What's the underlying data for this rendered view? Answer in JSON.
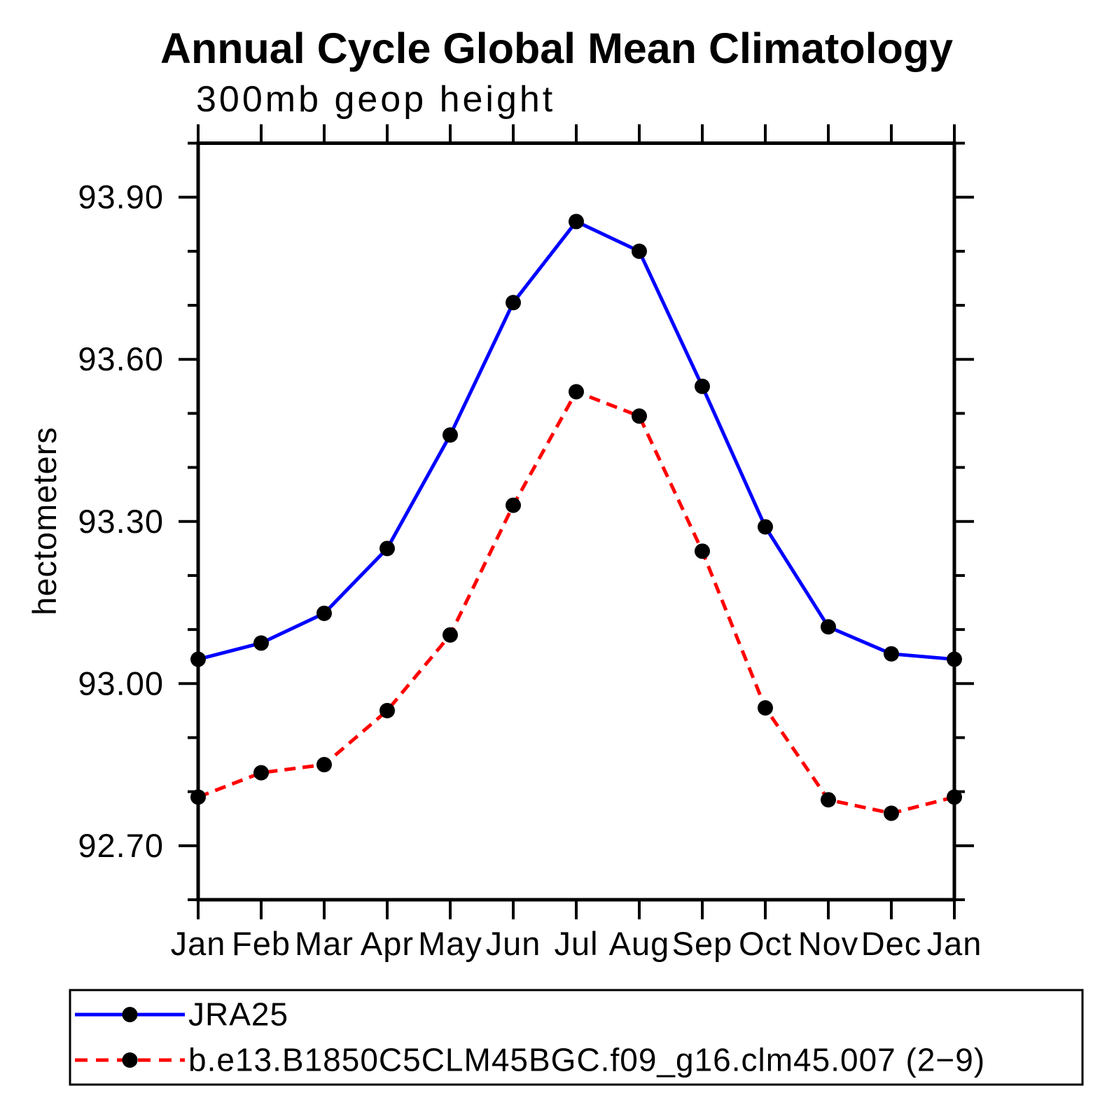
{
  "title": "Annual Cycle Global Mean Climatology",
  "subtitle": "300mb geop height",
  "chart_data": {
    "type": "line",
    "title": "Annual Cycle Global Mean Climatology",
    "subtitle": "300mb geop height",
    "xlabel": "",
    "ylabel": "hectometers",
    "x_categories": [
      "Jan",
      "Feb",
      "Mar",
      "Apr",
      "May",
      "Jun",
      "Jul",
      "Aug",
      "Sep",
      "Oct",
      "Nov",
      "Dec",
      "Jan"
    ],
    "y_major_ticks": [
      "92.70",
      "93.00",
      "93.30",
      "93.60",
      "93.90"
    ],
    "y_minor_step": 0.1,
    "ylim": [
      92.6,
      94.0
    ],
    "grid": false,
    "legend_position": "bottom",
    "background_color": "#ffffff",
    "axis_color": "#000000",
    "marker_color": "#000000",
    "series": [
      {
        "name": "JRA25",
        "color": "#0000ff",
        "style": "solid",
        "marker": "circle",
        "values": [
          93.045,
          93.075,
          93.13,
          93.25,
          93.46,
          93.705,
          93.855,
          93.8,
          93.55,
          93.29,
          93.105,
          93.055,
          93.045
        ]
      },
      {
        "name": "b.e13.B1850C5CLM45BGC.f09_g16.clm45.007 (2−9)",
        "color": "#ff0000",
        "style": "dashed",
        "marker": "circle",
        "values": [
          92.79,
          92.835,
          92.85,
          92.95,
          93.09,
          93.33,
          93.54,
          93.495,
          93.245,
          92.955,
          92.785,
          92.76,
          92.79
        ]
      }
    ]
  }
}
